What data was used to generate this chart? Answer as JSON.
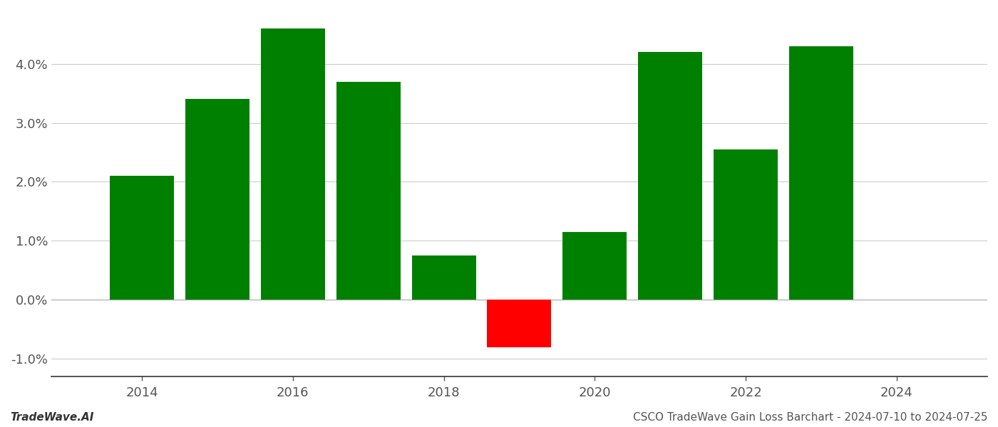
{
  "years": [
    2014,
    2015,
    2016,
    2017,
    2018,
    2019,
    2020,
    2021,
    2022,
    2023
  ],
  "values": [
    0.021,
    0.034,
    0.046,
    0.037,
    0.0075,
    -0.008,
    0.0115,
    0.042,
    0.0255,
    0.043
  ],
  "colors": [
    "#008000",
    "#008000",
    "#008000",
    "#008000",
    "#008000",
    "#ff0000",
    "#008000",
    "#008000",
    "#008000",
    "#008000"
  ],
  "ylim": [
    -0.013,
    0.049
  ],
  "yticks": [
    -0.01,
    0.0,
    0.01,
    0.02,
    0.03,
    0.04
  ],
  "xticks": [
    2014,
    2016,
    2018,
    2020,
    2022,
    2024
  ],
  "xlim": [
    2012.8,
    2025.2
  ],
  "bar_width": 0.85,
  "grid_color": "#cccccc",
  "background_color": "#ffffff",
  "footer_left": "TradeWave.AI",
  "footer_right": "CSCO TradeWave Gain Loss Barchart - 2024-07-10 to 2024-07-25",
  "footer_fontsize": 11,
  "tick_fontsize": 13
}
